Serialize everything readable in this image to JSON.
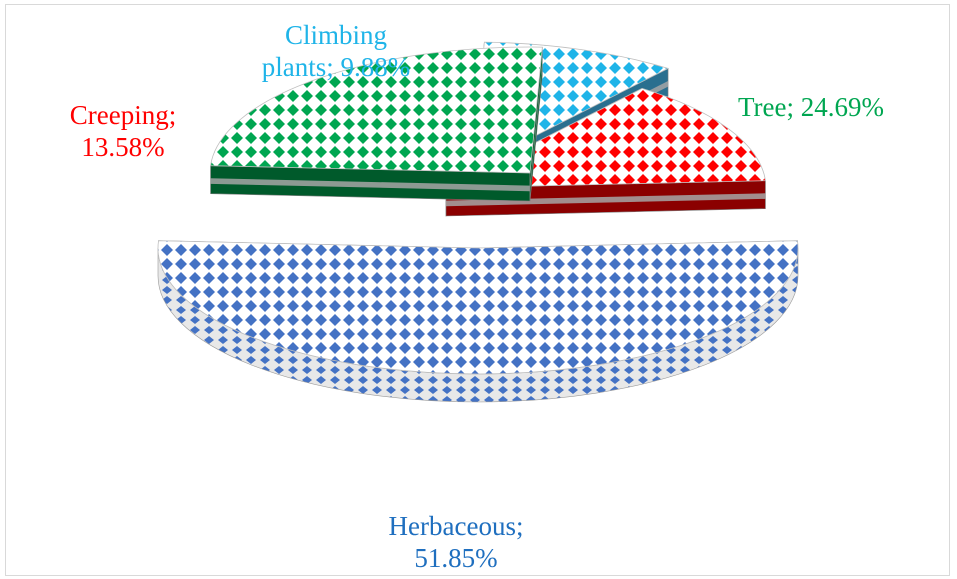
{
  "chart_data": {
    "type": "pie",
    "style": "3d-exploded",
    "legend": "none",
    "slices": [
      {
        "name": "Herbaceous",
        "value": 51.85,
        "label_line1": "Herbaceous;",
        "label_line2": "51.85%",
        "color": "#4472c4",
        "dark": "#2f5597",
        "label_color": "#1f6fbf"
      },
      {
        "name": "Creeping",
        "value": 13.58,
        "label_line1": "Creeping;",
        "label_line2": "13.58%",
        "color": "#ff0000",
        "dark": "#8b0000",
        "label_color": "#ff0000"
      },
      {
        "name": "Climbing plants",
        "value": 9.88,
        "label_line1": "Climbing",
        "label_line2": "plants; 9.88%",
        "color": "#1fb4e8",
        "dark": "#2a6f8f",
        "label_color": "#1fb4e8"
      },
      {
        "name": "Tree",
        "value": 24.69,
        "label_line1": "Tree; 24.69%",
        "label_line2": "",
        "color": "#00a651",
        "dark": "#005a2b",
        "label_color": "#00a651"
      }
    ]
  }
}
